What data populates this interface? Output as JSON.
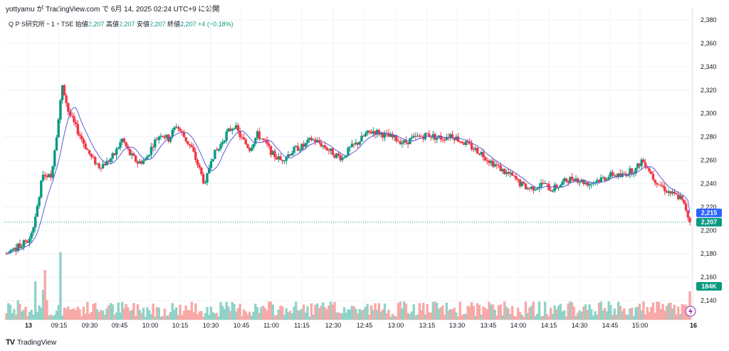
{
  "attribution": "yottyamu が TradingView.com で 6月 14, 2025 02:24 UTC+9 に公開",
  "legend": {
    "symbol": "Q P S研究所・1・TSE",
    "open_label": "始値",
    "open": "2,207",
    "high_label": "高値",
    "high": "2,207",
    "low_label": "安値",
    "low": "2,207",
    "close_label": "終値",
    "close": "2,207",
    "change": "+4 (+0.18%)"
  },
  "footer": {
    "logo": "TradingView"
  },
  "colors": {
    "up": "#089981",
    "down": "#f23645",
    "volume_up": "#8fd3c8",
    "volume_down": "#f7a9a7",
    "ma": "#5b5bd6",
    "ma_badge": "#2962ff",
    "grid": "#f0f3fa"
  },
  "chart_data": {
    "type": "candlestick",
    "ylim": [
      2130,
      2385
    ],
    "yticks": [
      "2,140",
      "2,160",
      "2,180",
      "2,200",
      "2,220",
      "2,240",
      "2,260",
      "2,280",
      "2,300",
      "2,320",
      "2,340",
      "2,360",
      "2,380"
    ],
    "x_ticks": [
      "13",
      "09:15",
      "09:30",
      "09:45",
      "10:00",
      "10:15",
      "10:30",
      "10:45",
      "11:00",
      "11:15",
      "12:30",
      "12:45",
      "13:00",
      "13:15",
      "13:30",
      "13:45",
      "14:00",
      "14:15",
      "14:30",
      "14:45",
      "15:00",
      "16"
    ],
    "bold_x_ticks": [
      "13",
      "16"
    ],
    "last_price": 2207,
    "last_price_label": "2,207",
    "ma_last": 2215,
    "ma_last_label": "2,215",
    "volume_last_label": "184K",
    "close_path": [
      [
        0,
        2180
      ],
      [
        8,
        2188
      ],
      [
        12,
        2192
      ],
      [
        15,
        2210
      ],
      [
        19,
        2250
      ],
      [
        23,
        2245
      ],
      [
        27,
        2295
      ],
      [
        29,
        2325
      ],
      [
        32,
        2302
      ],
      [
        36,
        2288
      ],
      [
        40,
        2275
      ],
      [
        44,
        2262
      ],
      [
        48,
        2255
      ],
      [
        52,
        2258
      ],
      [
        56,
        2265
      ],
      [
        60,
        2278
      ],
      [
        64,
        2265
      ],
      [
        68,
        2258
      ],
      [
        72,
        2260
      ],
      [
        76,
        2274
      ],
      [
        80,
        2283
      ],
      [
        84,
        2278
      ],
      [
        88,
        2290
      ],
      [
        92,
        2280
      ],
      [
        96,
        2270
      ],
      [
        100,
        2252
      ],
      [
        103,
        2238
      ],
      [
        106,
        2262
      ],
      [
        110,
        2270
      ],
      [
        114,
        2283
      ],
      [
        118,
        2290
      ],
      [
        122,
        2278
      ],
      [
        126,
        2270
      ],
      [
        130,
        2282
      ],
      [
        134,
        2275
      ],
      [
        138,
        2265
      ],
      [
        142,
        2260
      ],
      [
        146,
        2265
      ],
      [
        150,
        2270
      ],
      [
        154,
        2272
      ],
      [
        158,
        2278
      ],
      [
        162,
        2275
      ],
      [
        166,
        2270
      ],
      [
        170,
        2265
      ],
      [
        174,
        2262
      ],
      [
        178,
        2270
      ],
      [
        182,
        2275
      ],
      [
        186,
        2282
      ],
      [
        190,
        2285
      ],
      [
        194,
        2283
      ],
      [
        198,
        2280
      ],
      [
        202,
        2278
      ],
      [
        206,
        2275
      ],
      [
        210,
        2278
      ],
      [
        214,
        2280
      ],
      [
        218,
        2282
      ],
      [
        222,
        2280
      ],
      [
        226,
        2279
      ],
      [
        230,
        2282
      ],
      [
        234,
        2278
      ],
      [
        238,
        2274
      ],
      [
        242,
        2270
      ],
      [
        246,
        2266
      ],
      [
        250,
        2260
      ],
      [
        254,
        2255
      ],
      [
        258,
        2250
      ],
      [
        262,
        2246
      ],
      [
        266,
        2240
      ],
      [
        270,
        2236
      ],
      [
        274,
        2237
      ],
      [
        278,
        2240
      ],
      [
        282,
        2235
      ],
      [
        286,
        2238
      ],
      [
        290,
        2243
      ],
      [
        294,
        2245
      ],
      [
        298,
        2242
      ],
      [
        302,
        2240
      ],
      [
        306,
        2243
      ],
      [
        310,
        2245
      ],
      [
        314,
        2248
      ],
      [
        318,
        2246
      ],
      [
        322,
        2250
      ],
      [
        326,
        2252
      ],
      [
        329,
        2260
      ],
      [
        332,
        2255
      ],
      [
        335,
        2245
      ],
      [
        338,
        2240
      ],
      [
        342,
        2234
      ],
      [
        346,
        2230
      ],
      [
        349,
        2228
      ],
      [
        352,
        2218
      ],
      [
        354,
        2207
      ]
    ]
  }
}
